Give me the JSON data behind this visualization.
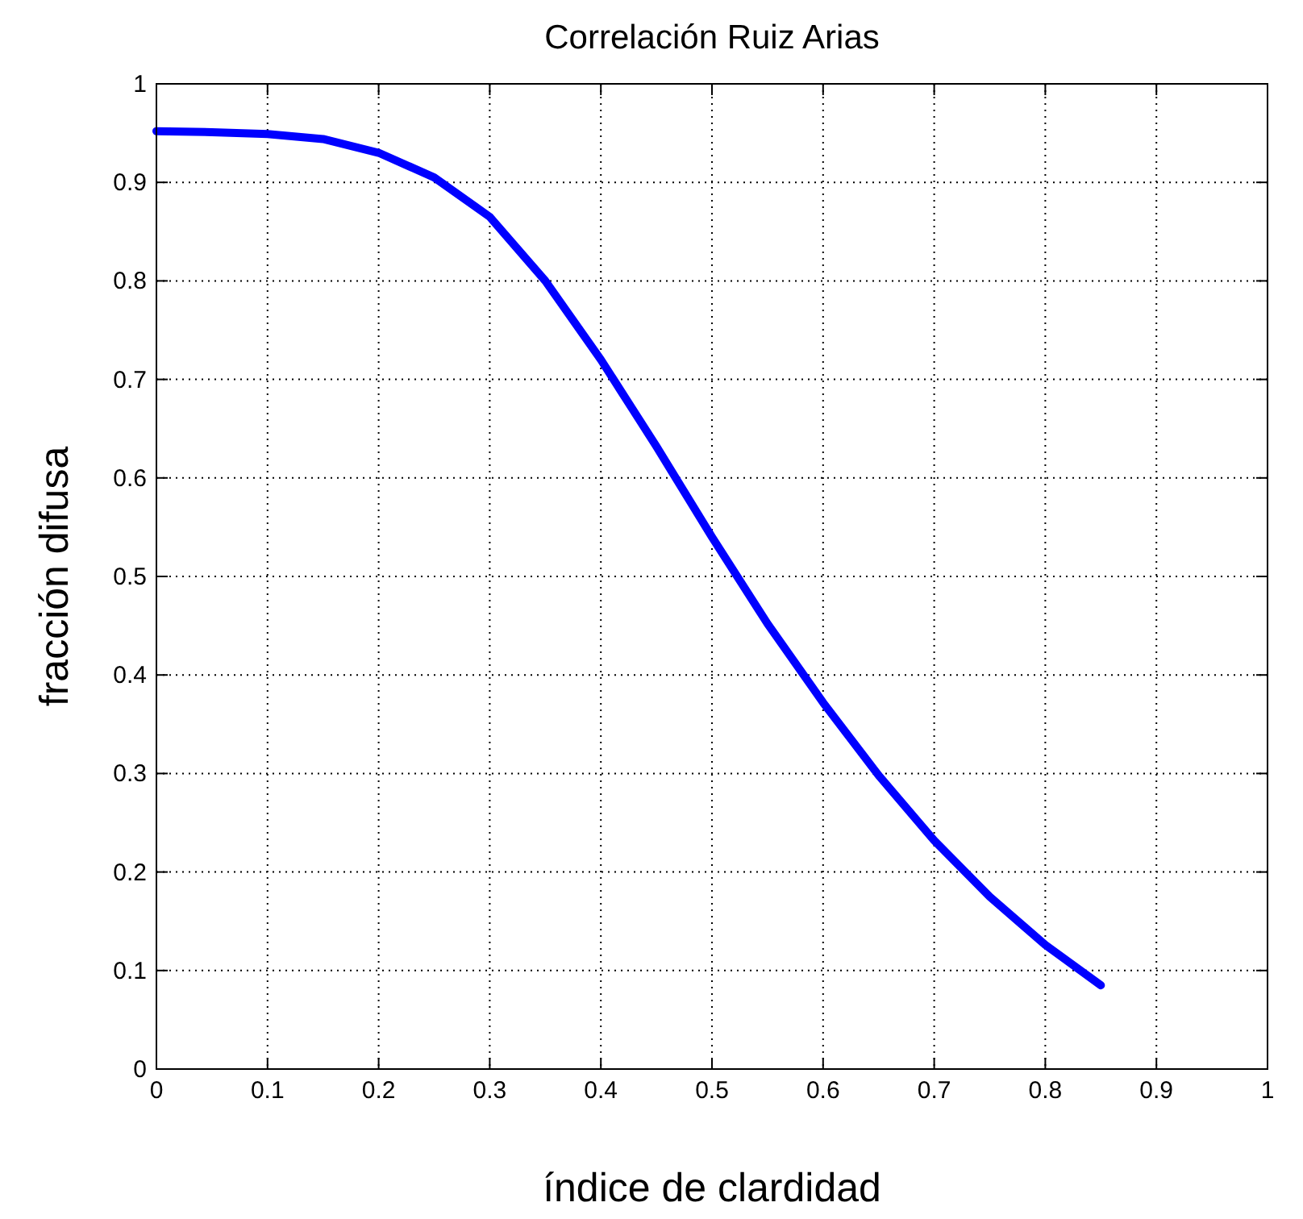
{
  "chart_data": {
    "type": "line",
    "title": "Correlación Ruiz Arias",
    "xlabel": "índice de clardidad",
    "ylabel": "fracción difusa",
    "series": [
      {
        "color": "#0000ff",
        "x": [
          0,
          0.05,
          0.1,
          0.15,
          0.2,
          0.25,
          0.3,
          0.35,
          0.4,
          0.45,
          0.5,
          0.55,
          0.6,
          0.65,
          0.7,
          0.75,
          0.8,
          0.85
        ],
        "values": [
          0.952,
          0.951,
          0.949,
          0.944,
          0.93,
          0.905,
          0.865,
          0.8,
          0.72,
          0.632,
          0.54,
          0.452,
          0.372,
          0.298,
          0.232,
          0.175,
          0.126,
          0.085
        ]
      }
    ],
    "xlim": [
      0,
      1
    ],
    "xticks": [
      0,
      0.1,
      0.2,
      0.3,
      0.4,
      0.5,
      0.6,
      0.7,
      0.8,
      0.9,
      1
    ],
    "ylim": [
      0,
      1
    ],
    "yticks": [
      0,
      0.1,
      0.2,
      0.3,
      0.4,
      0.5,
      0.6,
      0.7,
      0.8,
      0.9,
      1
    ],
    "grid": true,
    "marker": "none",
    "line_style": "solid"
  }
}
